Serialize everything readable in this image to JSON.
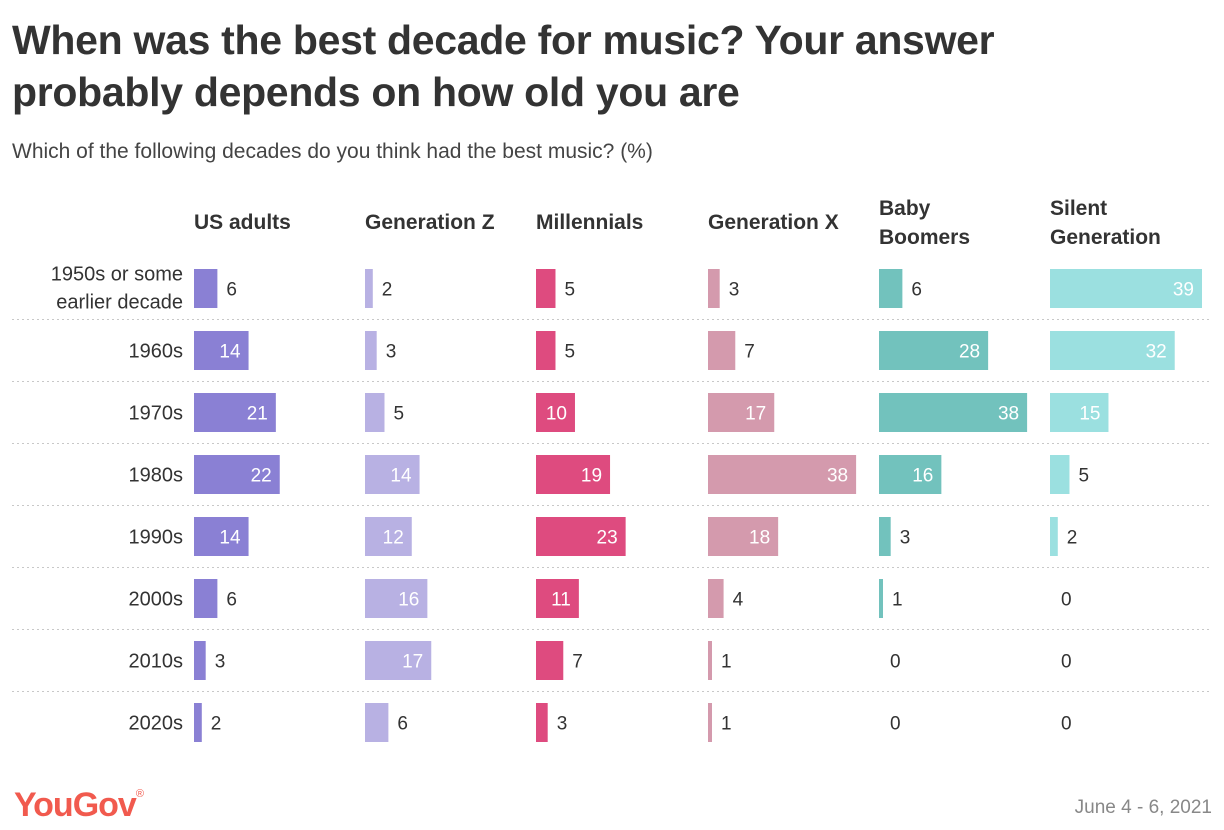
{
  "title_line1": "When was the best decade for music? Your answer",
  "title_line2": "probably depends on how old you are",
  "subtitle": "Which of the following decades do you think had the best music? (%)",
  "logo_text": "YouGov",
  "logo_mark": "®",
  "date": "June 4 - 6, 2021",
  "chart_data": {
    "type": "bar",
    "orientation": "horizontal-small-multiples",
    "title": "When was the best decade for music? Your answer probably depends on how old you are",
    "subtitle": "Which of the following decades do you think had the best music? (%)",
    "categories": [
      [
        "1950s or some",
        "earlier decade"
      ],
      [
        "1960s"
      ],
      [
        "1970s"
      ],
      [
        "1980s"
      ],
      [
        "1990s"
      ],
      [
        "2000s"
      ],
      [
        "2010s"
      ],
      [
        "2020s"
      ]
    ],
    "series": [
      {
        "name": [
          "US adults"
        ],
        "color": "#8a80d4",
        "values": [
          6,
          14,
          21,
          22,
          14,
          6,
          3,
          2
        ]
      },
      {
        "name": [
          "Generation Z"
        ],
        "color": "#b8b1e3",
        "values": [
          2,
          3,
          5,
          14,
          12,
          16,
          17,
          6
        ]
      },
      {
        "name": [
          "Millennials"
        ],
        "color": "#de4b7f",
        "values": [
          5,
          5,
          10,
          19,
          23,
          11,
          7,
          3
        ]
      },
      {
        "name": [
          "Generation X"
        ],
        "color": "#d49aad",
        "values": [
          3,
          7,
          17,
          38,
          18,
          4,
          1,
          1
        ]
      },
      {
        "name": [
          "Baby",
          "Boomers"
        ],
        "color": "#72c2bd",
        "values": [
          6,
          28,
          38,
          16,
          3,
          1,
          0,
          0
        ]
      },
      {
        "name": [
          "Silent",
          "Generation"
        ],
        "color": "#9be0e0",
        "values": [
          39,
          32,
          15,
          5,
          2,
          0,
          0,
          0
        ]
      }
    ],
    "xlim": [
      0,
      39
    ],
    "unit": "%"
  }
}
